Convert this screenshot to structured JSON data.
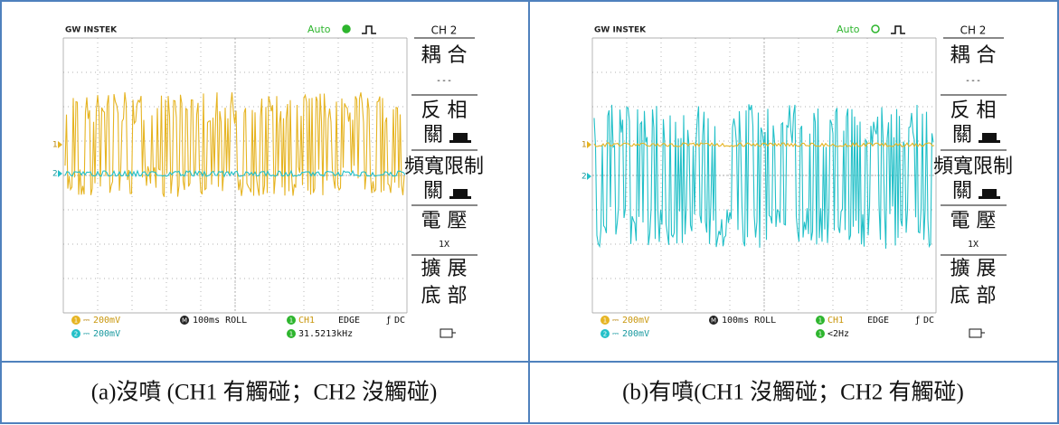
{
  "panels": [
    {
      "brand": "GW INSTEK",
      "trigger_mode": "Auto",
      "channel": "CH 2",
      "menu": [
        "耦 合",
        "---",
        "反 相",
        "關",
        "頻寬限制",
        "關",
        "電 壓",
        "1X",
        "擴 展",
        "底 部"
      ],
      "marker_1": "1",
      "marker_2": "2",
      "ch1_badge": "1",
      "ch1_scale": "200mV",
      "ch2_badge": "2",
      "ch2_scale": "200mV",
      "time_badge": "M",
      "timebase": "100ms ROLL",
      "trigger_source": "CH1",
      "trigger_type": "EDGE",
      "coupling": "DC",
      "frequency": "31.5213kHz",
      "caption": "(a)沒噴 (CH1 有觸碰；CH2 沒觸碰)"
    },
    {
      "brand": "GW INSTEK",
      "trigger_mode": "Auto",
      "channel": "CH 2",
      "menu": [
        "耦 合",
        "---",
        "反 相",
        "關",
        "頻寬限制",
        "關",
        "電 壓",
        "1X",
        "擴 展",
        "底 部"
      ],
      "marker_1": "1",
      "marker_2": "2",
      "ch1_badge": "1",
      "ch1_scale": "200mV",
      "ch2_badge": "2",
      "ch2_scale": "200mV",
      "time_badge": "M",
      "timebase": "100ms ROLL",
      "trigger_source": "CH1",
      "trigger_type": "EDGE",
      "coupling": "DC",
      "frequency": "<2Hz",
      "caption": "(b)有噴(CH1 沒觸碰；CH2 有觸碰)"
    }
  ]
}
